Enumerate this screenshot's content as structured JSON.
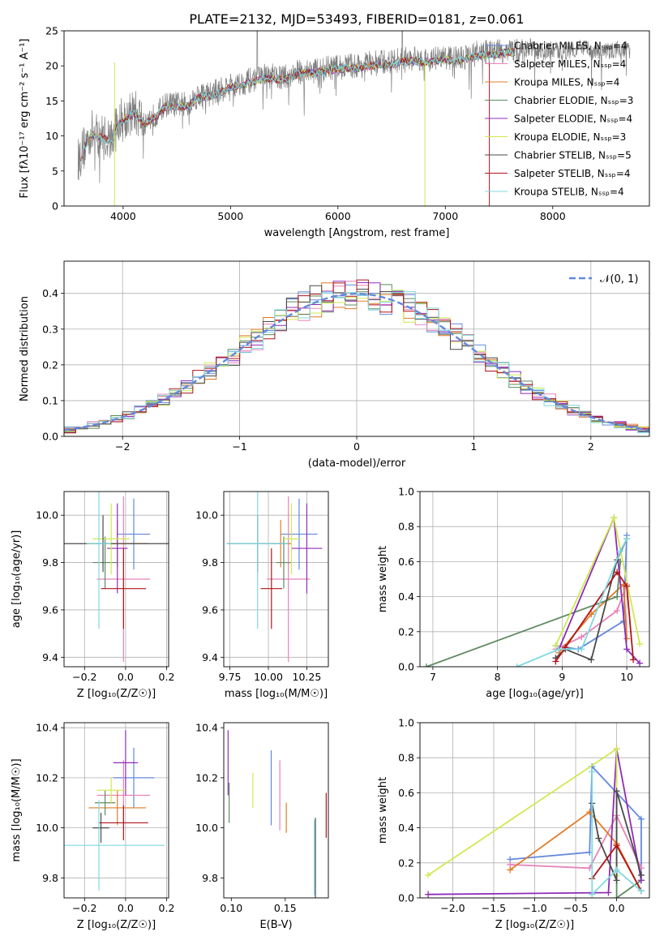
{
  "colors": [
    "#6388dc",
    "#e882b8",
    "#e07b28",
    "#5f8a62",
    "#8f2cb8",
    "#cfe94f",
    "#4a4a4a",
    "#b0151a",
    "#7fd9e0"
  ],
  "chart_data": [
    {
      "id": "spectrum",
      "type": "line",
      "title": "PLATE=2132, MJD=53493, FIBERID=0181, z=0.061",
      "xlabel": "wavelength [Angstrom, rest frame]",
      "ylabel": "Flux [fλ10⁻¹⁷ erg cm⁻² s⁻¹ A⁻¹]",
      "xlim": [
        3450,
        8900
      ],
      "ylim": [
        0,
        25
      ],
      "xticks": [
        "4000",
        "5000",
        "6000",
        "7000",
        "8000"
      ],
      "yticks": [
        "0",
        "5",
        "10",
        "15",
        "20",
        "25"
      ],
      "data_color": "#808080",
      "data_envelope": {
        "x": [
          3580,
          3700,
          3800,
          3900,
          3950,
          4000,
          4100,
          4200,
          4300,
          4400,
          4500,
          4600,
          4700,
          4800,
          4900,
          5000,
          5100,
          5200,
          5300,
          5400,
          5500,
          5600,
          5700,
          5800,
          5900,
          6000,
          6100,
          6200,
          6300,
          6400,
          6500,
          6600,
          6700,
          6800,
          6900,
          7000,
          7100,
          7200,
          7300,
          7400,
          7500,
          7600,
          7700,
          7800,
          7900,
          8000,
          8100,
          8200,
          8300,
          8400,
          8500,
          8600,
          8700
        ],
        "y": [
          6.5,
          10.5,
          10,
          9.5,
          12,
          12.5,
          13.5,
          12,
          13,
          14.5,
          14.5,
          14.5,
          15.8,
          16,
          16.5,
          17.2,
          17.5,
          18,
          18.5,
          18.5,
          18.3,
          19,
          19.3,
          19.3,
          19.6,
          19.8,
          20,
          20,
          20.3,
          20.5,
          20.5,
          21,
          21,
          20.8,
          21,
          21.2,
          21,
          21.3,
          21.8,
          21.9,
          22,
          22.3,
          22,
          22.5,
          22,
          22.3,
          22,
          22.5,
          22.5,
          21.8,
          22,
          22.4,
          22.3
        ]
      },
      "legend": [
        "Chabrier MILES, Nₛₛₚ=4",
        "Salpeter MILES, Nₛₛₚ=4",
        "Kroupa MILES, Nₛₛₚ=4",
        "Chabrier ELODIE, Nₛₛₚ=3",
        "Salpeter ELODIE, Nₛₛₚ=4",
        "Kroupa ELODIE, Nₛₛₚ=3",
        "Chabrier STELIB, Nₛₛₚ=5",
        "Salpeter STELIB, Nₛₛₚ=4",
        "Kroupa STELIB, Nₛₛₚ=4"
      ],
      "legend_loc": "right"
    },
    {
      "id": "residuals",
      "type": "histogram",
      "xlabel": "(data-model)/error",
      "ylabel": "Normed distribution",
      "xlim": [
        -2.5,
        2.5
      ],
      "ylim": [
        0,
        0.49
      ],
      "xticks": [
        "−2",
        "−1",
        "0",
        "1",
        "2"
      ],
      "yticks": [
        "0.0",
        "0.1",
        "0.2",
        "0.3",
        "0.4"
      ],
      "grid": true,
      "reference": {
        "name": "𝒩(0, 1)",
        "mean": 0,
        "sigma": 1
      },
      "legend_loc": "top-right"
    },
    {
      "id": "age-vs-Z",
      "type": "errorbar",
      "xlabel": "Z [log₁₀(Z/Z☉)]",
      "ylabel": "age  [log₁₀(age/yr)]",
      "xlim": [
        -0.3,
        0.21
      ],
      "ylim": [
        9.36,
        10.1
      ],
      "xticks": [
        "−0.2",
        "0.0",
        "0.2"
      ],
      "yticks": [
        "9.4",
        "9.6",
        "9.8",
        "10.0"
      ],
      "grid": true,
      "points": [
        {
          "x": 0.04,
          "xerr": 0.08,
          "y": 9.92,
          "yerr": 0.15
        },
        {
          "x": -0.01,
          "xerr": 0.13,
          "y": 9.73,
          "yerr": 0.35
        },
        {
          "x": -0.04,
          "xerr": 0.15,
          "y": 9.88,
          "yerr": 0.1
        },
        {
          "x": -0.1,
          "xerr": 0.06,
          "y": 9.8,
          "yerr": 0.11
        },
        {
          "x": -0.04,
          "xerr": 0.05,
          "y": 9.86,
          "yerr": 0.19
        },
        {
          "x": -0.07,
          "xerr": 0.09,
          "y": 9.9,
          "yerr": 0.15
        },
        {
          "x": -0.11,
          "xerr": 0.32,
          "y": 9.88,
          "yerr": 0.12
        },
        {
          "x": -0.01,
          "xerr": 0.11,
          "y": 9.69,
          "yerr": 0.17
        },
        {
          "x": -0.13,
          "xerr": 0.06,
          "y": 9.88,
          "yerr": 0.36
        }
      ]
    },
    {
      "id": "age-vs-mass",
      "type": "errorbar",
      "xlabel": "mass [log₁₀(M/M☉)]",
      "ylabel": "",
      "xlim": [
        9.71,
        10.39
      ],
      "ylim": [
        9.36,
        10.1
      ],
      "xticks": [
        "9.75",
        "10.00",
        "10.25"
      ],
      "yticks": [
        "9.4",
        "9.6",
        "9.8",
        "10.0"
      ],
      "grid": true,
      "points": [
        {
          "x": 10.2,
          "xerr": 0.12,
          "y": 9.92,
          "yerr": 0.15
        },
        {
          "x": 10.13,
          "xerr": 0.14,
          "y": 9.73,
          "yerr": 0.35
        },
        {
          "x": 10.08,
          "xerr": 0.07,
          "y": 9.88,
          "yerr": 0.1
        },
        {
          "x": 10.1,
          "xerr": 0.05,
          "y": 9.8,
          "yerr": 0.11
        },
        {
          "x": 10.25,
          "xerr": 0.1,
          "y": 9.86,
          "yerr": 0.19
        },
        {
          "x": 10.15,
          "xerr": 0.05,
          "y": 9.9,
          "yerr": 0.15
        },
        {
          "x": 9.93,
          "xerr": 0.2,
          "y": 9.88,
          "yerr": 0.12
        },
        {
          "x": 10.02,
          "xerr": 0.07,
          "y": 9.69,
          "yerr": 0.17
        },
        {
          "x": 9.93,
          "xerr": 0.2,
          "y": 9.88,
          "yerr": 0.36
        }
      ]
    },
    {
      "id": "weight-vs-age",
      "type": "line",
      "xlabel": "age  [log₁₀(age/yr)]",
      "ylabel": "mass weight",
      "xlim": [
        6.8,
        10.35
      ],
      "ylim": [
        0,
        1
      ],
      "xticks": [
        "7",
        "8",
        "9",
        "10"
      ],
      "yticks": [
        "0.0",
        "0.2",
        "0.4",
        "0.6",
        "0.8",
        "1.0"
      ],
      "grid": true,
      "series": [
        {
          "points": [
            [
              8.9,
              0.12
            ],
            [
              9.25,
              0.1
            ],
            [
              9.95,
              0.26
            ],
            [
              10.0,
              0.75
            ]
          ]
        },
        {
          "points": [
            [
              8.9,
              0.1
            ],
            [
              9.3,
              0.17
            ],
            [
              9.85,
              0.32
            ],
            [
              10.0,
              0.47
            ]
          ]
        },
        {
          "points": [
            [
              8.95,
              0.08
            ],
            [
              9.45,
              0.3
            ],
            [
              9.95,
              0.47
            ],
            [
              10.0,
              0.16
            ]
          ]
        },
        {
          "points": [
            [
              6.9,
              0.0
            ],
            [
              9.85,
              0.4
            ],
            [
              9.9,
              0.6
            ]
          ]
        },
        {
          "points": [
            [
              8.95,
              0.1
            ],
            [
              9.8,
              0.85
            ],
            [
              10.0,
              0.1
            ],
            [
              10.2,
              0.02
            ]
          ]
        },
        {
          "points": [
            [
              8.9,
              0.12
            ],
            [
              9.8,
              0.85
            ],
            [
              10.2,
              0.13
            ]
          ]
        },
        {
          "points": [
            [
              8.9,
              0.05
            ],
            [
              9.05,
              0.1
            ],
            [
              9.45,
              0.04
            ],
            [
              9.85,
              0.61
            ],
            [
              10.0,
              0.73
            ]
          ]
        },
        {
          "points": [
            [
              8.9,
              0.03
            ],
            [
              9.05,
              0.11
            ],
            [
              9.85,
              0.54
            ],
            [
              10.0,
              0.46
            ],
            [
              10.1,
              0.04
            ]
          ]
        },
        {
          "points": [
            [
              8.3,
              0.0
            ],
            [
              8.95,
              0.1
            ],
            [
              9.3,
              0.1
            ],
            [
              9.9,
              0.66
            ],
            [
              10.0,
              0.73
            ]
          ]
        }
      ]
    },
    {
      "id": "mass-vs-Z",
      "type": "errorbar",
      "xlabel": "Z [log₁₀(Z/Z☉)]",
      "ylabel": "mass [log₁₀(M/M☉)]",
      "xlim": [
        -0.3,
        0.21
      ],
      "ylim": [
        9.72,
        10.42
      ],
      "xticks": [
        "−0.2",
        "0.0",
        "0.2"
      ],
      "yticks": [
        "9.8",
        "10.0",
        "10.2",
        "10.4"
      ],
      "grid": true,
      "points": [
        {
          "x": 0.04,
          "xerr": 0.1,
          "y": 10.2,
          "yerr": 0.12
        },
        {
          "x": -0.01,
          "xerr": 0.13,
          "y": 10.13,
          "yerr": 0.14
        },
        {
          "x": -0.04,
          "xerr": 0.14,
          "y": 10.08,
          "yerr": 0.07
        },
        {
          "x": -0.1,
          "xerr": 0.05,
          "y": 10.1,
          "yerr": 0.05
        },
        {
          "x": 0.0,
          "xerr": 0.06,
          "y": 10.26,
          "yerr": 0.13
        },
        {
          "x": -0.07,
          "xerr": 0.07,
          "y": 10.15,
          "yerr": 0.05
        },
        {
          "x": -0.12,
          "xerr": 0.04,
          "y": 10.0,
          "yerr": 0.06
        },
        {
          "x": -0.01,
          "xerr": 0.12,
          "y": 10.02,
          "yerr": 0.07
        },
        {
          "x": -0.13,
          "xerr": 0.32,
          "y": 9.93,
          "yerr": 0.18
        }
      ]
    },
    {
      "id": "mass-vs-ebv",
      "type": "errorbar",
      "xlabel": "E(B-V)",
      "ylabel": "",
      "xlim": [
        0.093,
        0.19
      ],
      "ylim": [
        9.72,
        10.42
      ],
      "xticks": [
        "0.10",
        "0.15"
      ],
      "yticks": [
        "9.8",
        "10.0",
        "10.2",
        "10.4"
      ],
      "grid": false,
      "points": [
        {
          "x": 0.137,
          "y": 10.16,
          "yerr": 0.15
        },
        {
          "x": 0.145,
          "y": 10.13,
          "yerr": 0.14
        },
        {
          "x": 0.151,
          "y": 10.04,
          "yerr": 0.06
        },
        {
          "x": 0.098,
          "y": 10.1,
          "yerr": 0.08
        },
        {
          "x": 0.097,
          "y": 10.26,
          "yerr": 0.13
        },
        {
          "x": 0.12,
          "y": 10.15,
          "yerr": 0.07
        },
        {
          "x": 0.178,
          "y": 9.88,
          "yerr": 0.16
        },
        {
          "x": 0.188,
          "y": 10.05,
          "yerr": 0.09
        },
        {
          "x": 0.177,
          "y": 9.88,
          "yerr": 0.15
        }
      ]
    },
    {
      "id": "weight-vs-Z",
      "type": "line",
      "xlabel": "Z [log₁₀(Z/Z☉)]",
      "ylabel": "mass weight",
      "xlim": [
        -2.4,
        0.4
      ],
      "ylim": [
        0,
        1
      ],
      "xticks": [
        "−2.0",
        "−1.5",
        "−1.0",
        "−0.5",
        "0.0"
      ],
      "yticks": [
        "0.0",
        "0.2",
        "0.4",
        "0.6",
        "0.8",
        "1.0"
      ],
      "grid": true,
      "series": [
        {
          "points": [
            [
              -1.3,
              0.22
            ],
            [
              -0.33,
              0.26
            ],
            [
              -0.3,
              0.75
            ],
            [
              0.3,
              0.45
            ],
            [
              0.3,
              0.1
            ]
          ]
        },
        {
          "points": [
            [
              -1.3,
              0.19
            ],
            [
              -0.33,
              0.17
            ],
            [
              0.0,
              0.47
            ],
            [
              0.3,
              0.17
            ]
          ]
        },
        {
          "points": [
            [
              -1.3,
              0.16
            ],
            [
              -0.33,
              0.49
            ],
            [
              0.0,
              0.31
            ],
            [
              0.3,
              0.04
            ]
          ]
        },
        {
          "points": [
            [
              0.0,
              0.61
            ],
            [
              0.0,
              0.0
            ],
            [
              0.3,
              0.1
            ]
          ]
        },
        {
          "points": [
            [
              -2.3,
              0.02
            ],
            [
              -0.1,
              0.03
            ],
            [
              0.0,
              0.85
            ],
            [
              0.3,
              0.1
            ]
          ]
        },
        {
          "points": [
            [
              -2.3,
              0.13
            ],
            [
              0.0,
              0.85
            ],
            [
              0.0,
              0.13
            ]
          ]
        },
        {
          "points": [
            [
              -0.3,
              0.54
            ],
            [
              -0.22,
              0.34
            ],
            [
              0.0,
              0.1
            ],
            [
              0.0,
              0.61
            ],
            [
              0.3,
              0.13
            ]
          ]
        },
        {
          "points": [
            [
              -0.3,
              0.11
            ],
            [
              0.0,
              0.3
            ],
            [
              0.3,
              0.04
            ]
          ]
        },
        {
          "points": [
            [
              -0.3,
              0.72
            ],
            [
              -0.3,
              0.02
            ],
            [
              0.0,
              0.16
            ],
            [
              0.3,
              0.04
            ]
          ]
        }
      ]
    }
  ]
}
